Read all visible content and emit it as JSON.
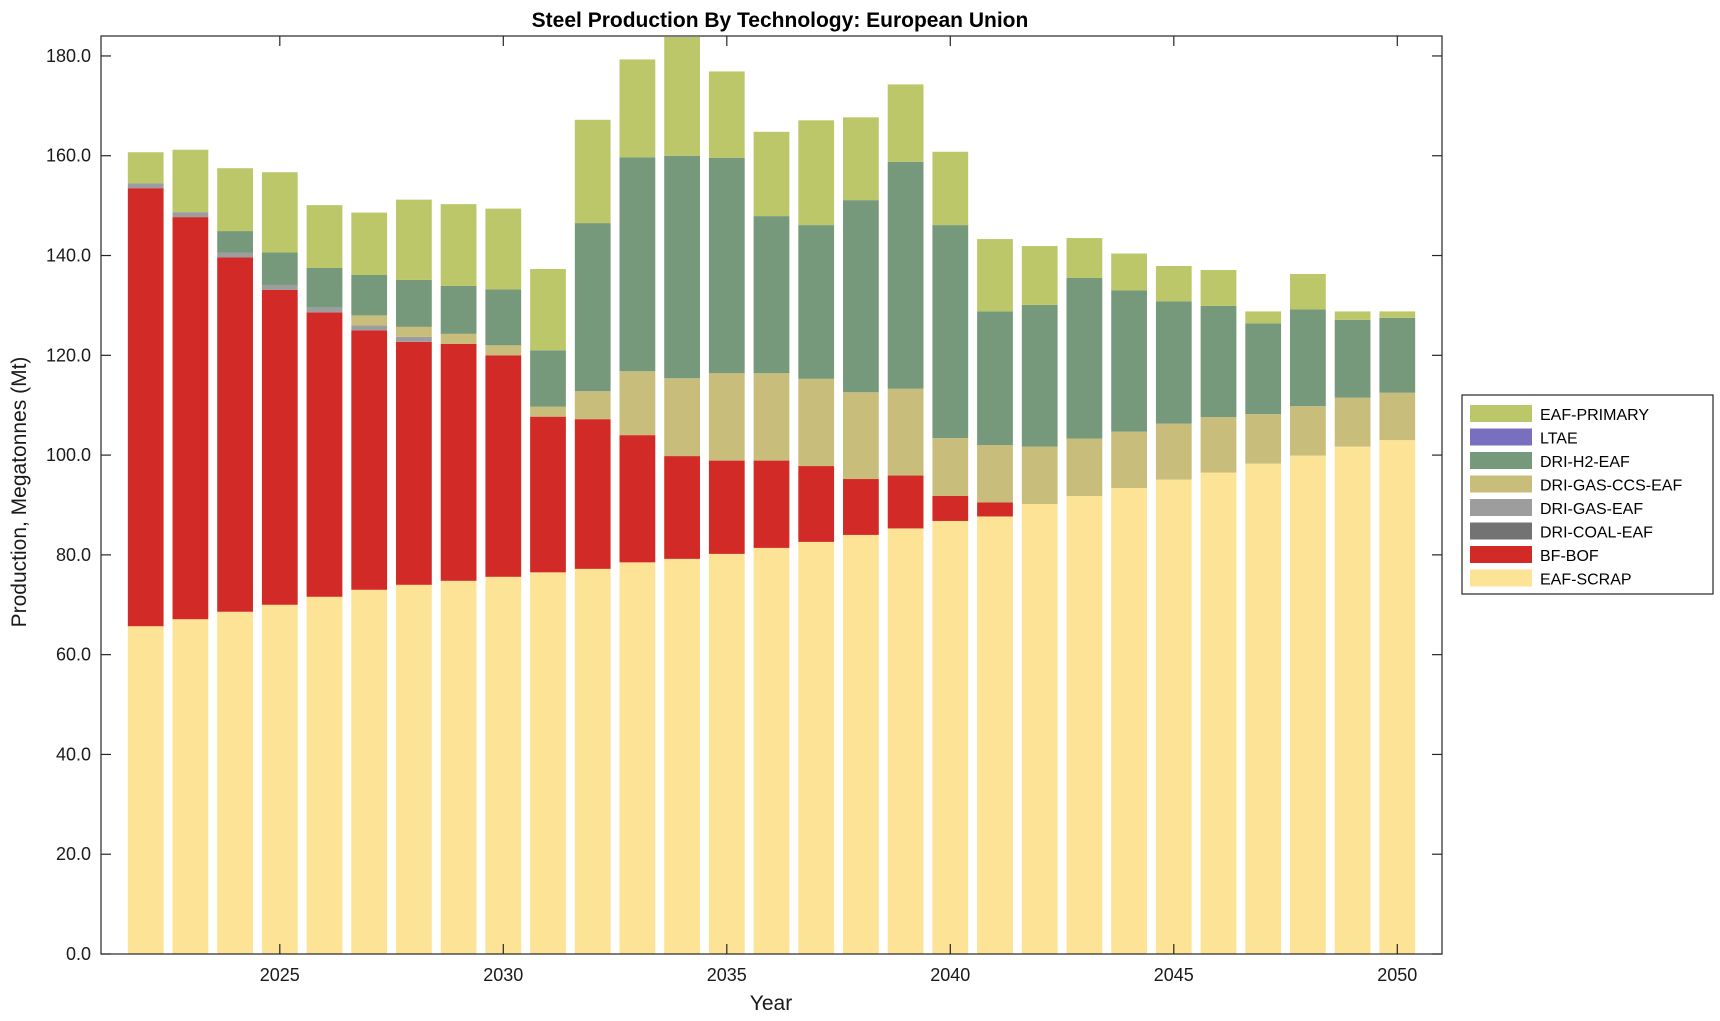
{
  "chart_data": {
    "type": "bar",
    "stacked": true,
    "title": "Steel Production By Technology: European Union",
    "xlabel": "Year",
    "ylabel": "Production, Megatonnes (Mt)",
    "ylim": [
      0,
      184
    ],
    "xlim": [
      2021.0,
      2051.0
    ],
    "yticks": [
      0,
      20,
      40,
      60,
      80,
      100,
      120,
      140,
      160,
      180
    ],
    "ytick_labels": [
      "0.0",
      "20.0",
      "40.0",
      "60.0",
      "80.0",
      "100.0",
      "120.0",
      "140.0",
      "160.0",
      "180.0"
    ],
    "xticks": [
      2025,
      2030,
      2035,
      2040,
      2045,
      2050
    ],
    "xtick_labels": [
      "2025",
      "2030",
      "2035",
      "2040",
      "2045",
      "2050"
    ],
    "grid": false,
    "legend_position": "right",
    "x": [
      2022,
      2023,
      2024,
      2025,
      2026,
      2027,
      2028,
      2029,
      2030,
      2031,
      2032,
      2033,
      2034,
      2035,
      2036,
      2037,
      2038,
      2039,
      2040,
      2041,
      2042,
      2043,
      2044,
      2045,
      2046,
      2047,
      2048,
      2049,
      2050
    ],
    "series": [
      {
        "name": "EAF-SCRAP",
        "color": "#fde395",
        "values": [
          65.7,
          67.1,
          68.6,
          70.0,
          71.6,
          73.0,
          74.0,
          74.8,
          75.6,
          76.5,
          77.2,
          78.5,
          79.2,
          80.2,
          81.4,
          82.6,
          84.0,
          85.3,
          86.8,
          87.7,
          90.2,
          91.8,
          93.4,
          95.1,
          96.5,
          98.3,
          99.9,
          101.7,
          103.0
        ]
      },
      {
        "name": "BF-BOF",
        "color": "#d22a27",
        "values": [
          87.8,
          80.6,
          71.0,
          63.1,
          57.0,
          52.0,
          48.7,
          47.5,
          44.4,
          31.2,
          30.0,
          25.5,
          20.6,
          18.7,
          17.5,
          15.2,
          11.2,
          10.6,
          5.0,
          2.8,
          0,
          0,
          0,
          0,
          0,
          0,
          0,
          0,
          0
        ]
      },
      {
        "name": "DRI-COAL-EAF",
        "color": "#737373",
        "values": [
          0,
          0,
          0,
          0,
          0,
          0,
          0,
          0,
          0,
          0,
          0,
          0,
          0,
          0,
          0,
          0,
          0,
          0,
          0,
          0,
          0,
          0,
          0,
          0,
          0,
          0,
          0,
          0,
          0
        ]
      },
      {
        "name": "DRI-GAS-EAF",
        "color": "#9d9d9d",
        "values": [
          1.0,
          1.0,
          1.0,
          1.0,
          1.0,
          1.0,
          1.0,
          0,
          0,
          0,
          0,
          0,
          0,
          0,
          0,
          0,
          0,
          0,
          0,
          0,
          0,
          0,
          0,
          0,
          0,
          0,
          0,
          0,
          0
        ]
      },
      {
        "name": "DRI-GAS-CCS-EAF",
        "color": "#c8bd7a",
        "values": [
          0,
          0,
          0,
          0,
          0,
          2.0,
          2.0,
          2.0,
          2.0,
          2.0,
          5.6,
          12.8,
          15.6,
          17.5,
          17.5,
          17.5,
          17.4,
          17.4,
          11.6,
          11.5,
          11.5,
          11.5,
          11.3,
          11.2,
          11.1,
          9.9,
          9.9,
          9.8,
          9.5
        ]
      },
      {
        "name": "DRI-H2-EAF",
        "color": "#76987b",
        "values": [
          0,
          0,
          4.3,
          6.5,
          7.9,
          8.1,
          9.4,
          9.6,
          11.2,
          11.3,
          33.7,
          42.9,
          44.6,
          43.2,
          31.5,
          30.8,
          38.5,
          45.5,
          42.7,
          26.8,
          28.4,
          32.2,
          28.3,
          24.5,
          22.3,
          18.2,
          19.4,
          15.6,
          15.0
        ]
      },
      {
        "name": "LTAE",
        "color": "#7870be",
        "values": [
          0,
          0,
          0,
          0,
          0,
          0,
          0,
          0,
          0,
          0,
          0,
          0,
          0,
          0,
          0,
          0,
          0,
          0,
          0,
          0,
          0,
          0,
          0,
          0,
          0,
          0,
          0,
          0,
          0
        ]
      },
      {
        "name": "EAF-PRIMARY",
        "color": "#bcc76a",
        "values": [
          6.2,
          12.5,
          12.6,
          16.1,
          12.6,
          12.5,
          16.1,
          16.4,
          16.2,
          16.3,
          20.7,
          19.6,
          23.8,
          17.3,
          16.9,
          21.0,
          16.6,
          15.5,
          14.7,
          14.5,
          11.8,
          8.0,
          7.4,
          7.1,
          7.2,
          2.4,
          7.1,
          1.7,
          1.3
        ]
      }
    ],
    "legend_order": [
      "EAF-PRIMARY",
      "LTAE",
      "DRI-H2-EAF",
      "DRI-GAS-CCS-EAF",
      "DRI-GAS-EAF",
      "DRI-COAL-EAF",
      "BF-BOF",
      "EAF-SCRAP"
    ]
  }
}
